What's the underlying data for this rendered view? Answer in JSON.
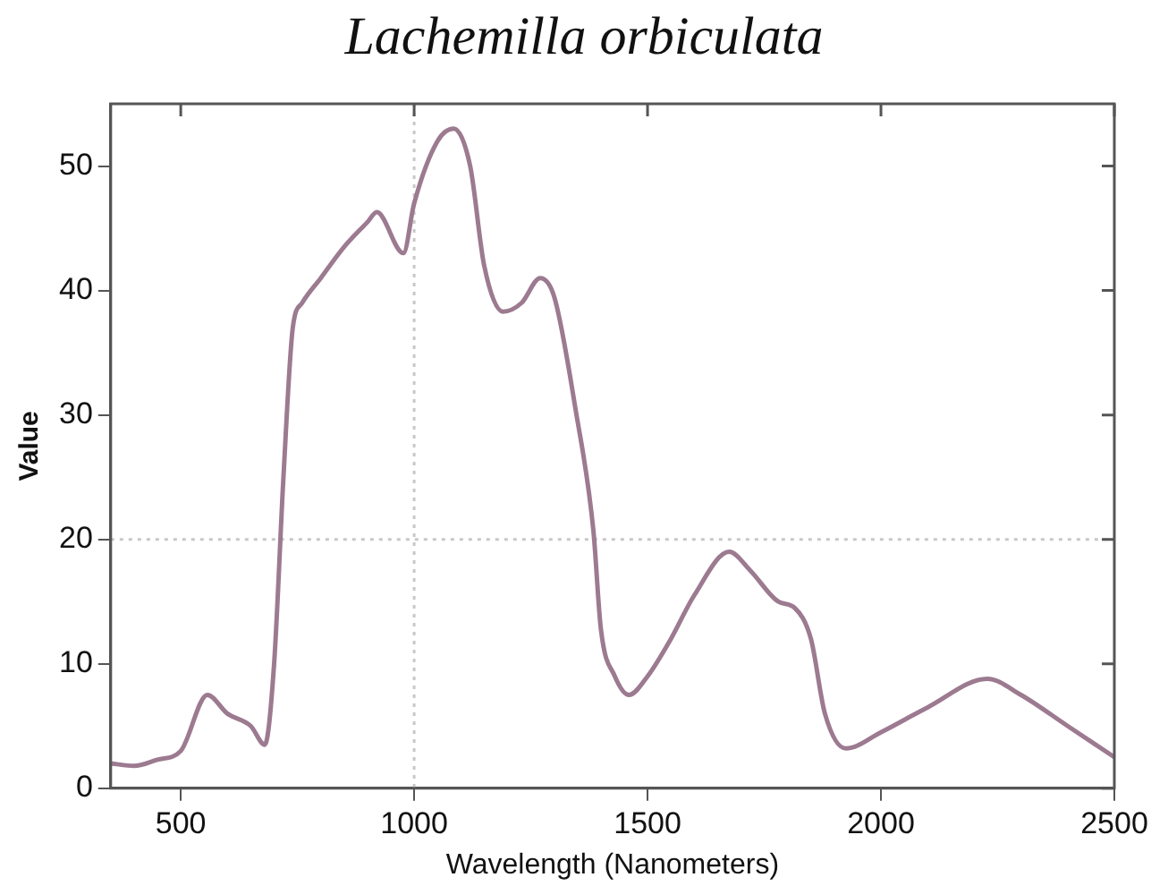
{
  "chart_data": {
    "type": "line",
    "title": "Lachemilla orbiculata",
    "xlabel": "Wavelength (Nanometers)",
    "ylabel": "Value",
    "x": [
      350,
      400,
      450,
      500,
      557,
      600,
      650,
      680,
      700,
      720,
      740,
      760,
      800,
      850,
      900,
      920,
      977,
      1000,
      1050,
      1085,
      1120,
      1150,
      1190,
      1230,
      1270,
      1300,
      1346,
      1384,
      1400,
      1430,
      1460,
      1500,
      1550,
      1600,
      1675,
      1720,
      1780,
      1815,
      1850,
      1880,
      1925,
      2000,
      2100,
      2228,
      2300,
      2400,
      2500
    ],
    "series": [
      {
        "color": "#9c7a90",
        "values": [
          2,
          1.8,
          2.3,
          3,
          7.5,
          6,
          5,
          3.5,
          10,
          25,
          37,
          39,
          41,
          43.5,
          45.5,
          46.3,
          43,
          47,
          52,
          53,
          50,
          42,
          38.3,
          39,
          41,
          39.5,
          30.4,
          20.7,
          12.8,
          9,
          7.5,
          9,
          12,
          15.5,
          19,
          17.5,
          15,
          14.5,
          12,
          6,
          3.2,
          4.5,
          6.5,
          8.8,
          7.5,
          5,
          2.5
        ]
      }
    ],
    "xlim": [
      350,
      2500
    ],
    "xticks": [
      500,
      1000,
      1500,
      2000,
      2500
    ],
    "ylim": [
      0,
      55
    ],
    "yticks": [
      0,
      10,
      20,
      30,
      40,
      50
    ],
    "ref_lines": [
      {
        "axis": "x",
        "value": 1000,
        "color": "#c8c8c8",
        "line_style": "dotted"
      },
      {
        "axis": "y",
        "value": 20,
        "color": "#c8c8c8",
        "line_style": "dotted"
      }
    ],
    "grid": false,
    "legend": false,
    "marker": "none",
    "line_style": "solid"
  }
}
